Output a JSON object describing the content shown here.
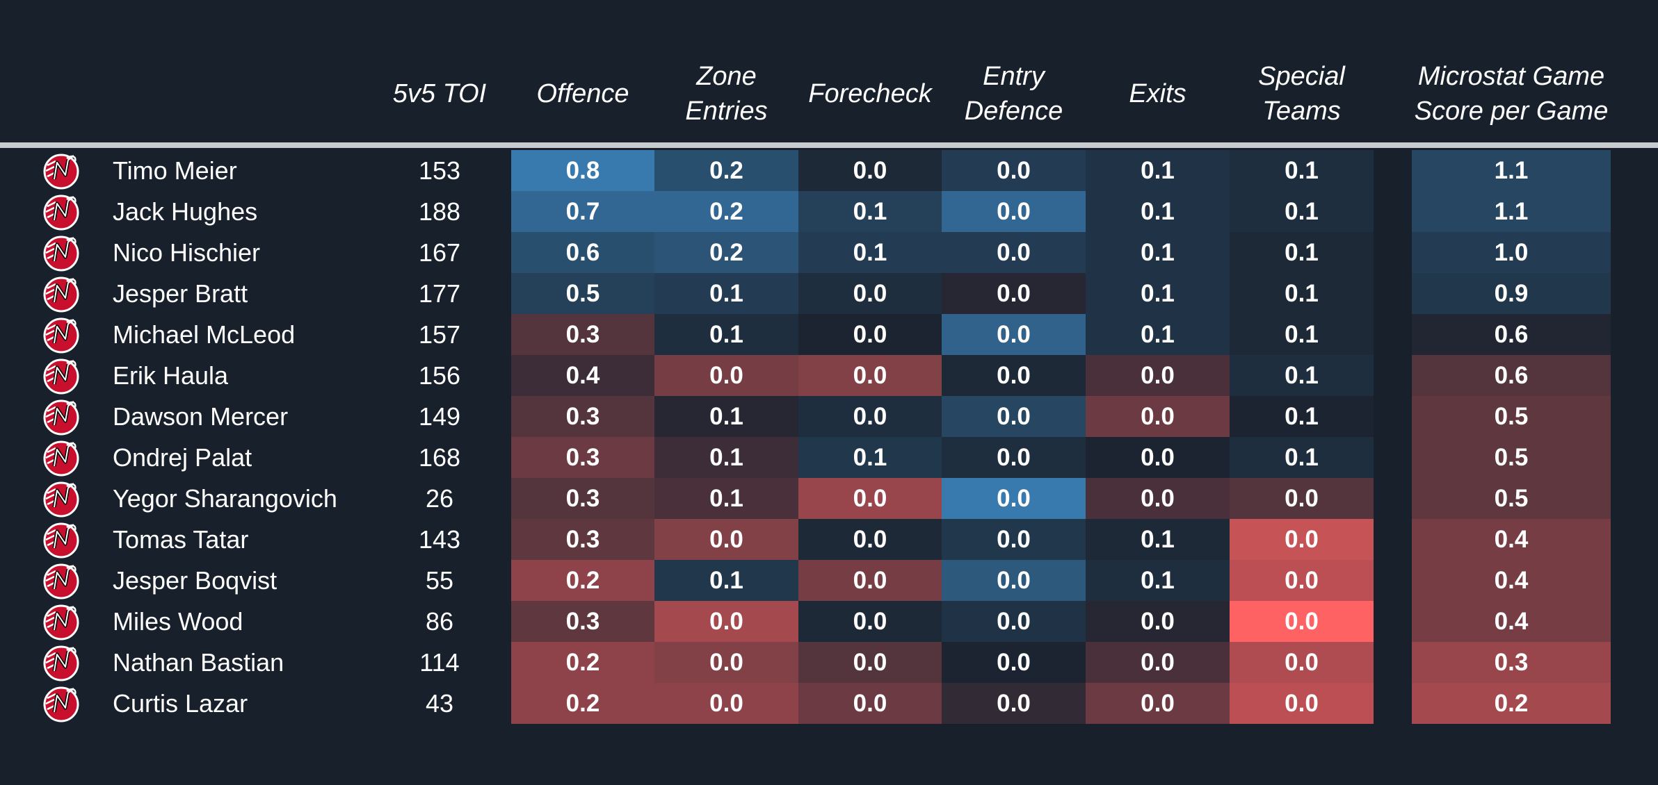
{
  "chart_data": {
    "type": "table",
    "columns": [
      "",
      "5v5 TOI",
      "Offence",
      "Zone\nEntries",
      "Forecheck",
      "Entry\nDefence",
      "Exits",
      "Special\nTeams",
      "Microstat Game\nScore per Game"
    ],
    "metric_keys": [
      "offence",
      "zone_entries",
      "forecheck",
      "entry_defence",
      "exits",
      "special_teams",
      "game_score"
    ],
    "color_scale": {
      "low": "#ff6262",
      "mid": "#1b2430",
      "high": "#3b84bc"
    },
    "rows": [
      {
        "player": "Timo Meier",
        "toi": "153",
        "values": [
          "0.8",
          "0.2",
          "0.0",
          "0.0",
          "0.1",
          "0.1",
          "1.1"
        ],
        "heat": [
          0.9,
          0.45,
          0.05,
          0.25,
          0.15,
          0.1,
          0.35
        ]
      },
      {
        "player": "Jack Hughes",
        "toi": "188",
        "values": [
          "0.7",
          "0.2",
          "0.1",
          "0.0",
          "0.1",
          "0.1",
          "1.1"
        ],
        "heat": [
          0.7,
          0.7,
          0.3,
          0.7,
          0.15,
          0.1,
          0.35
        ]
      },
      {
        "player": "Nico Hischier",
        "toi": "167",
        "values": [
          "0.6",
          "0.2",
          "0.1",
          "0.0",
          "0.1",
          "0.1",
          "1.0"
        ],
        "heat": [
          0.45,
          0.5,
          0.25,
          0.25,
          0.15,
          0.05,
          0.25
        ]
      },
      {
        "player": "Jesper Bratt",
        "toi": "177",
        "values": [
          "0.5",
          "0.1",
          "0.0",
          "0.0",
          "0.1",
          "0.1",
          "0.9"
        ],
        "heat": [
          0.3,
          0.25,
          0.1,
          -0.05,
          0.15,
          0.05,
          0.2
        ]
      },
      {
        "player": "Michael McLeod",
        "toi": "157",
        "values": [
          "0.3",
          "0.1",
          "0.0",
          "0.0",
          "0.1",
          "0.1",
          "0.6"
        ],
        "heat": [
          -0.25,
          0.1,
          0.0,
          0.65,
          0.15,
          0.05,
          -0.03
        ]
      },
      {
        "player": "Erik Haula",
        "toi": "156",
        "values": [
          "0.4",
          "0.0",
          "0.0",
          "0.0",
          "0.0",
          "0.1",
          "0.6"
        ],
        "heat": [
          -0.15,
          -0.4,
          -0.45,
          0.05,
          -0.2,
          0.1,
          -0.25
        ]
      },
      {
        "player": "Dawson Mercer",
        "toi": "149",
        "values": [
          "0.3",
          "0.1",
          "0.0",
          "0.0",
          "0.0",
          "0.1",
          "0.5"
        ],
        "heat": [
          -0.25,
          -0.05,
          0.1,
          0.35,
          -0.35,
          0.0,
          -0.3
        ]
      },
      {
        "player": "Ondrej Palat",
        "toi": "168",
        "values": [
          "0.3",
          "0.1",
          "0.1",
          "0.0",
          "0.0",
          "0.1",
          "0.5"
        ],
        "heat": [
          -0.35,
          -0.15,
          0.2,
          0.1,
          0.0,
          0.1,
          -0.3
        ]
      },
      {
        "player": "Yegor Sharangovich",
        "toi": "26",
        "values": [
          "0.3",
          "0.1",
          "0.0",
          "0.0",
          "0.0",
          "0.0",
          "0.5"
        ],
        "heat": [
          -0.25,
          -0.2,
          -0.55,
          0.9,
          -0.2,
          -0.25,
          -0.3
        ]
      },
      {
        "player": "Tomas Tatar",
        "toi": "143",
        "values": [
          "0.3",
          "0.0",
          "0.0",
          "0.0",
          "0.1",
          "0.0",
          "0.4"
        ],
        "heat": [
          -0.3,
          -0.45,
          0.05,
          0.2,
          0.05,
          -0.75,
          -0.4
        ]
      },
      {
        "player": "Jesper Boqvist",
        "toi": "55",
        "values": [
          "0.2",
          "0.1",
          "0.0",
          "0.0",
          "0.1",
          "0.0",
          "0.4"
        ],
        "heat": [
          -0.5,
          0.2,
          -0.4,
          0.55,
          0.1,
          -0.7,
          -0.4
        ]
      },
      {
        "player": "Miles Wood",
        "toi": "86",
        "values": [
          "0.3",
          "0.0",
          "0.0",
          "0.0",
          "0.0",
          "0.0",
          "0.4"
        ],
        "heat": [
          -0.3,
          -0.6,
          0.05,
          0.15,
          -0.05,
          -1.0,
          -0.4
        ]
      },
      {
        "player": "Nathan Bastian",
        "toi": "114",
        "values": [
          "0.2",
          "0.0",
          "0.0",
          "0.0",
          "0.0",
          "0.0",
          "0.3"
        ],
        "heat": [
          -0.5,
          -0.45,
          -0.25,
          0.0,
          -0.2,
          -0.65,
          -0.55
        ]
      },
      {
        "player": "Curtis Lazar",
        "toi": "43",
        "values": [
          "0.2",
          "0.0",
          "0.0",
          "0.0",
          "0.0",
          "0.0",
          "0.2"
        ],
        "heat": [
          -0.5,
          -0.5,
          -0.35,
          -0.1,
          -0.35,
          -0.7,
          -0.6
        ]
      }
    ]
  }
}
